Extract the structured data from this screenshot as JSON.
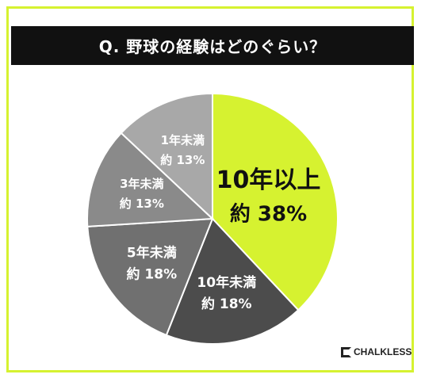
{
  "question": "Q. 野球の経験はどのぐらい？",
  "brand": "CHALKLESS",
  "chart_data": {
    "type": "pie",
    "title": "Q. 野球の経験はどのぐらい？",
    "slices": [
      {
        "label": "10年以上",
        "value_label": "約 38%",
        "value": 38,
        "color": "#d6f230"
      },
      {
        "label": "10年未満",
        "value_label": "約 18%",
        "value": 18,
        "color": "#4c4c4c"
      },
      {
        "label": "5年未満",
        "value_label": "約 18%",
        "value": 18,
        "color": "#707070"
      },
      {
        "label": "3年未満",
        "value_label": "約 13%",
        "value": 13,
        "color": "#8a8a8a"
      },
      {
        "label": "1年未満",
        "value_label": "約 13%",
        "value": 13,
        "color": "#a8a8a8"
      }
    ],
    "start": "top, clockwise"
  }
}
